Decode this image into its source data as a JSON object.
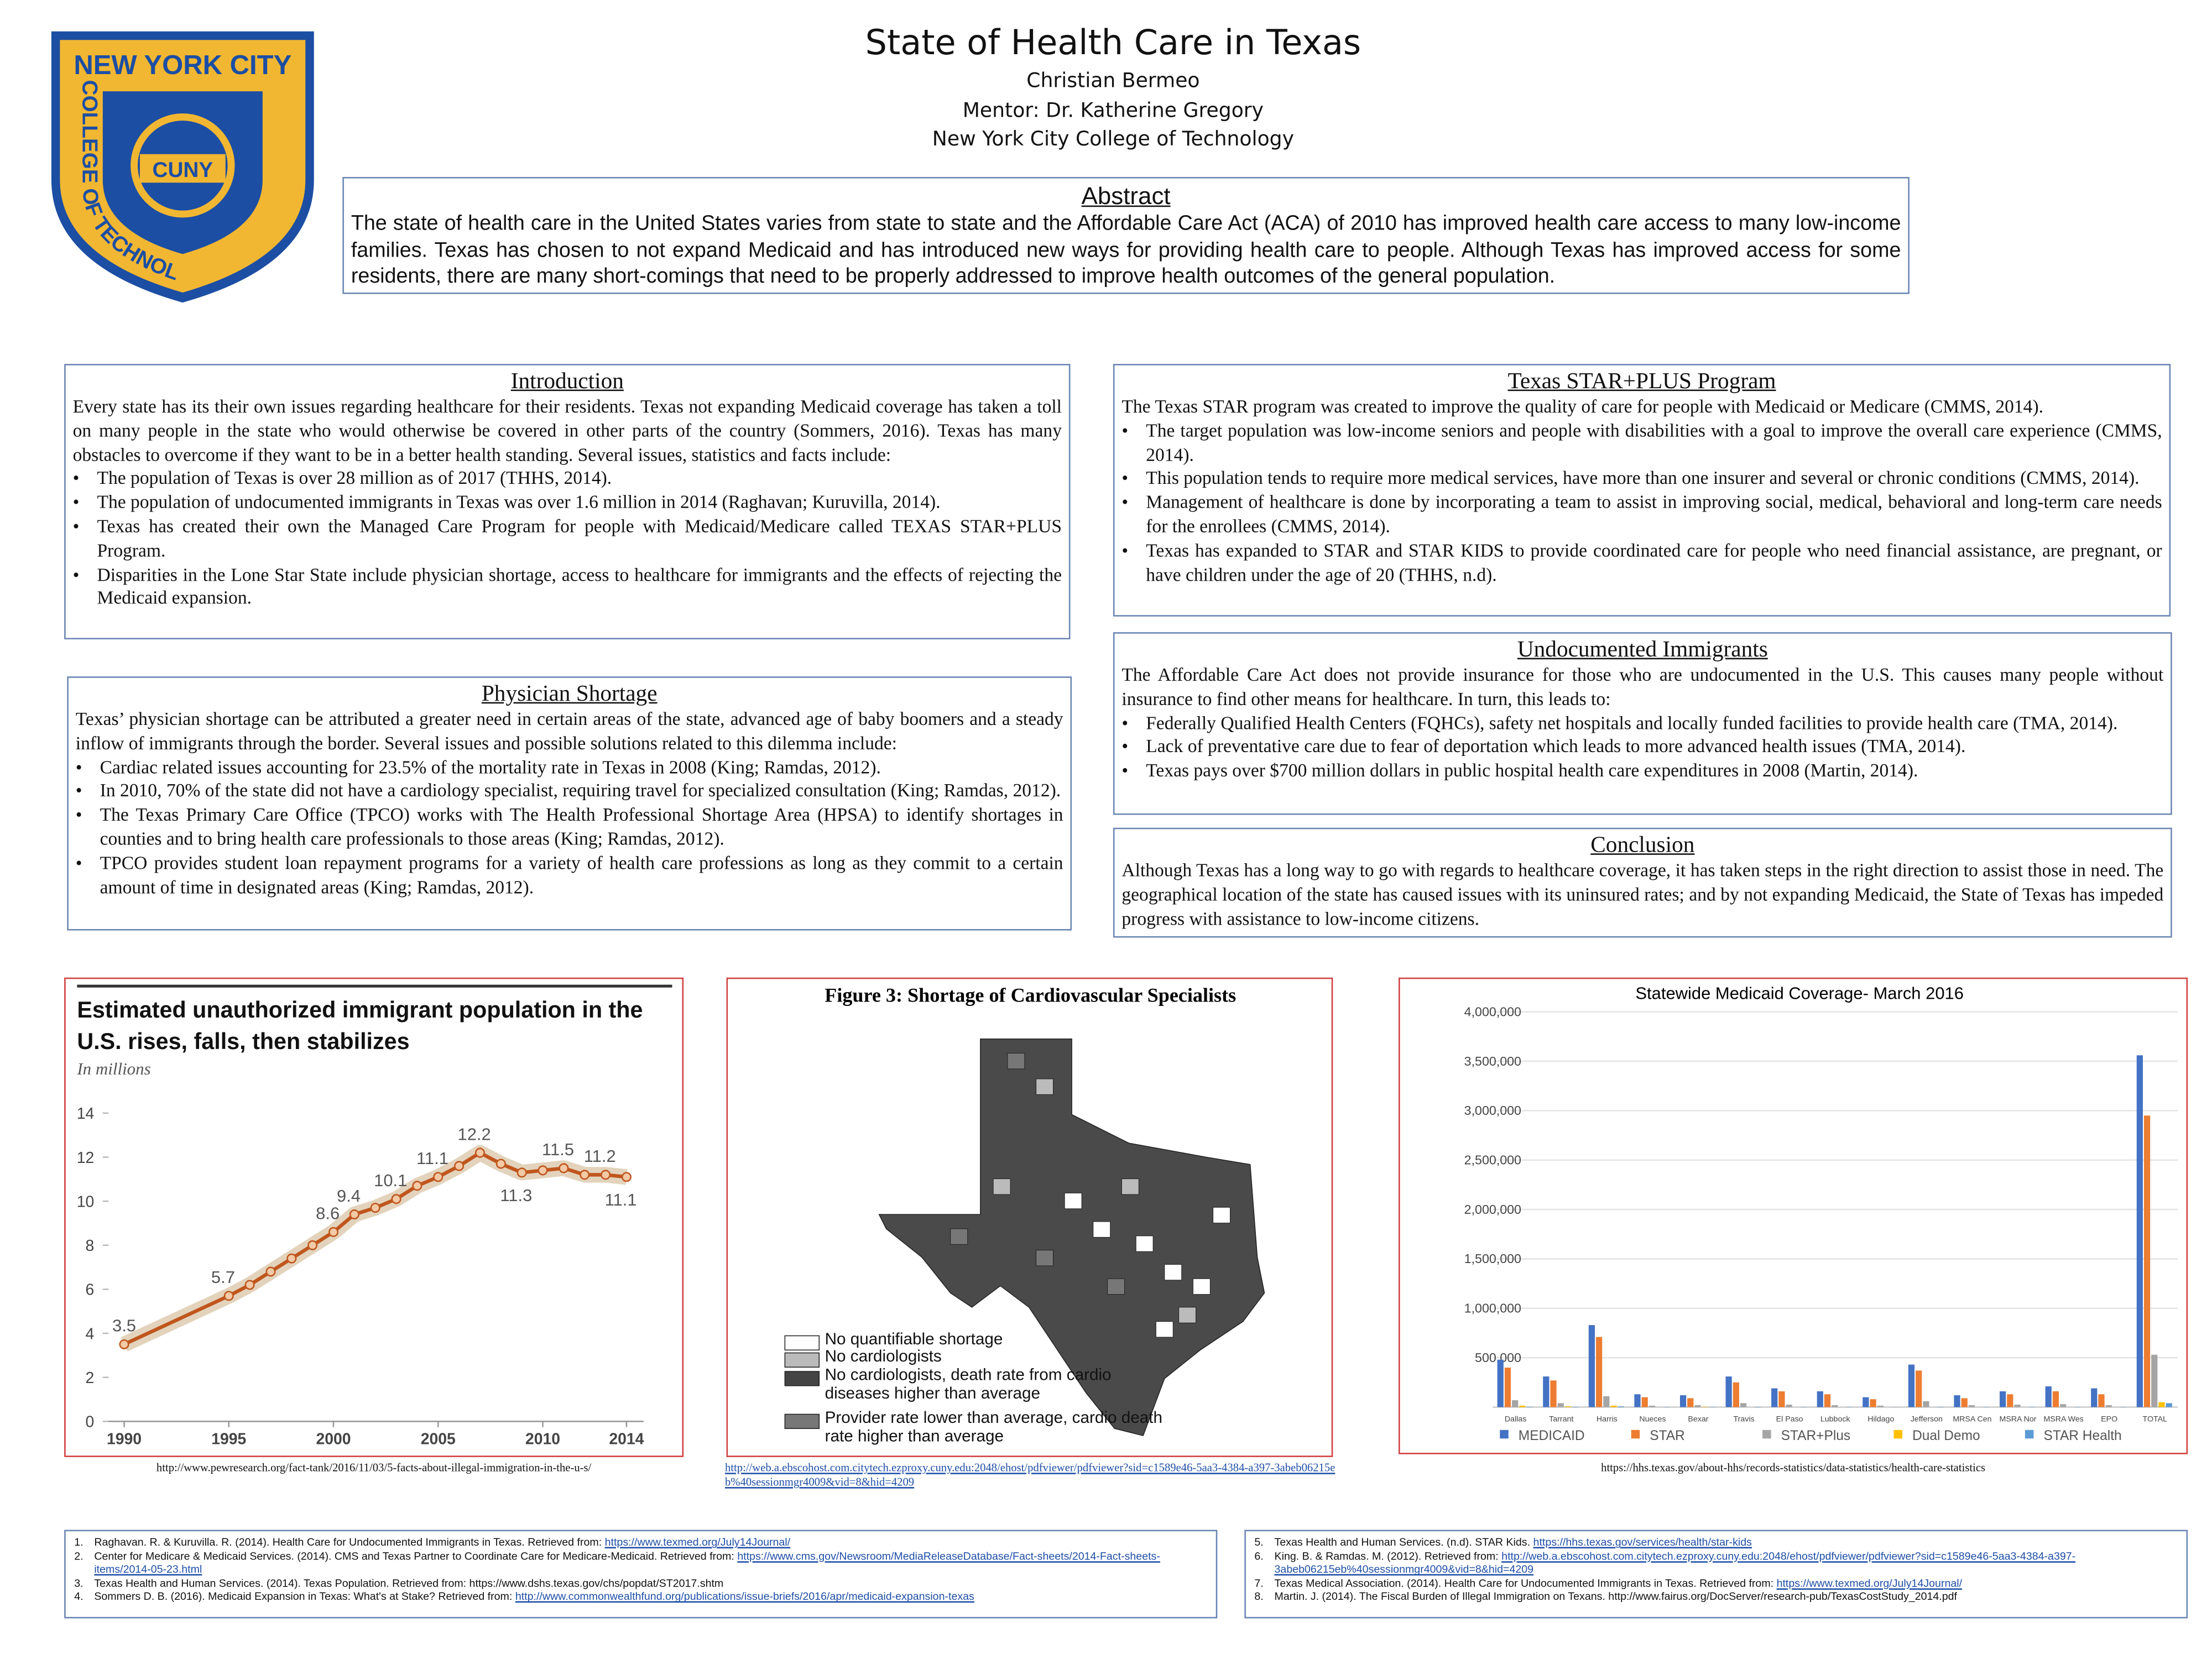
{
  "header": {
    "title": "State of Health Care in Texas",
    "author": "Christian Bermeo",
    "mentor": "Mentor: Dr. Katherine Gregory",
    "institution": "New York City College of Technology"
  },
  "logo": {
    "top": "NEW YORK CITY",
    "side": "COLLEGE OF TECHNOLOGY",
    "center": "CUNY"
  },
  "abstract": {
    "heading": "Abstract",
    "text": "The state of health care in the United States varies from state to state and the Affordable Care Act (ACA) of 2010 has improved health care access to many low-income families. Texas has chosen to not expand Medicaid and has introduced new ways for providing health care to people. Although Texas has improved access for some residents, there are many short-comings that need to be properly addressed to improve health outcomes of the general population."
  },
  "sections": [
    {
      "heading": "Introduction",
      "text": "Every state has its their own issues regarding healthcare for their residents. Texas not expanding Medicaid coverage has taken a toll on many people in the state who would otherwise be covered in other parts of the country (Sommers, 2016). Texas has many obstacles to overcome if they want to be in a better health standing. Several issues, statistics and facts include:",
      "bullets": [
        "The population of Texas is over 28 million as of 2017 (THHS, 2014).",
        "The population of undocumented immigrants in Texas was over 1.6 million in 2014 (Raghavan; Kuruvilla, 2014).",
        "Texas has created their own the Managed Care Program for people with Medicaid/Medicare called TEXAS STAR+PLUS Program.",
        "Disparities in the Lone Star State include physician shortage, access to healthcare for immigrants and the effects of rejecting the Medicaid expansion."
      ]
    },
    {
      "heading": "Physician Shortage",
      "text": "Texas’ physician shortage can be attributed a greater need in certain areas of the state, advanced age of baby boomers and a steady inflow of immigrants through the border. Several issues and possible solutions related to this dilemma include:",
      "bullets": [
        "Cardiac related issues accounting for 23.5% of the mortality rate in Texas in 2008 (King; Ramdas, 2012).",
        "In 2010, 70% of the state did not have a cardiology specialist, requiring travel for specialized consultation (King; Ramdas, 2012).",
        "The Texas Primary Care Office (TPCO) works with The Health Professional Shortage Area (HPSA) to identify shortages in counties and to bring health care professionals to those areas (King; Ramdas, 2012).",
        "TPCO provides student loan repayment programs for a variety of health care professions as long as they commit to a certain amount of time in designated areas (King; Ramdas, 2012)."
      ]
    },
    {
      "heading": "Texas STAR+PLUS Program",
      "text": "The Texas STAR program was created to improve the quality of care for people with Medicaid or Medicare (CMMS, 2014).",
      "bullets": [
        "The target population was low-income seniors and people with disabilities with a goal to improve the overall care experience (CMMS, 2014).",
        "This population tends to require more medical services, have more than one insurer and several or chronic conditions (CMMS, 2014).",
        "Management of healthcare is done by incorporating a team to assist in improving social, medical, behavioral and long-term care needs for the enrollees (CMMS, 2014).",
        "Texas has expanded to STAR and STAR KIDS to provide coordinated care for people who need financial assistance, are pregnant, or have children under the age of 20 (THHS, n.d)."
      ]
    },
    {
      "heading": "Undocumented Immigrants",
      "text": "The Affordable Care Act does not provide insurance for those who are undocumented in the U.S. This causes many people without insurance to find other means for healthcare. In turn, this leads to:",
      "bullets": [
        "Federally Qualified Health Centers (FQHCs), safety net hospitals and locally funded facilities to provide health care (TMA, 2014).",
        "Lack of preventative care due to fear of deportation which leads to more advanced health issues (TMA, 2014).",
        "Texas pays over $700 million dollars in public hospital health care expenditures in 2008 (Martin, 2014)."
      ]
    },
    {
      "heading": "Conclusion",
      "text": "Although Texas has a long way to go with regards to healthcare coverage, it has taken steps in the right direction to assist those in need. The geographical location of the state has caused issues with its uninsured rates; and by not expanding Medicaid, the State of Texas has impeded progress with assistance to low-income citizens."
    }
  ],
  "chart_data": [
    {
      "type": "line",
      "title": "Estimated unauthorized immigrant population in the U.S. rises, falls, then stabilizes",
      "subtitle": "In millions",
      "color": "#c0561d",
      "x": [
        1990,
        1995,
        1996,
        1997,
        1998,
        1999,
        2000,
        2001,
        2002,
        2003,
        2004,
        2005,
        2006,
        2007,
        2008,
        2009,
        2010,
        2011,
        2012,
        2013,
        2014
      ],
      "values": [
        3.5,
        5.7,
        6.2,
        6.8,
        7.4,
        8.0,
        8.6,
        9.4,
        9.7,
        10.1,
        10.7,
        11.1,
        11.6,
        12.2,
        11.7,
        11.3,
        11.4,
        11.5,
        11.2,
        11.2,
        11.1
      ],
      "value_labels": [
        "3.5",
        "5.7",
        null,
        null,
        null,
        null,
        "8.6",
        "9.4",
        null,
        "10.1",
        null,
        "11.1",
        null,
        "12.2",
        null,
        "11.3",
        null,
        "11.5",
        null,
        "11.2",
        "11.1"
      ],
      "xlim": [
        1990,
        2014
      ],
      "xticks": [
        1990,
        1995,
        2000,
        2005,
        2010,
        2014
      ],
      "ylim": [
        0,
        14
      ],
      "yticks": [
        0,
        2,
        4,
        6,
        8,
        10,
        12,
        14
      ]
    },
    {
      "type": "bar",
      "title": "Statewide Medicaid Coverage- March 2016",
      "legend": "bottom",
      "grid": true,
      "categories": [
        "Dallas",
        "Tarrant",
        "Harris",
        "Nueces",
        "Bexar",
        "Travis",
        "El Paso",
        "Lubbock",
        "Hildago",
        "Jefferson",
        "MRSA Cen",
        "MSRA Nor",
        "MSRA Wes",
        "EPO",
        "TOTAL"
      ],
      "series": [
        {
          "name": "MEDICAID",
          "color": "#4472c4",
          "values": [
            480000,
            310000,
            830000,
            130000,
            120000,
            310000,
            190000,
            160000,
            100000,
            430000,
            120000,
            160000,
            210000,
            190000,
            3560000
          ]
        },
        {
          "name": "STAR",
          "color": "#ed7d31",
          "values": [
            400000,
            270000,
            710000,
            100000,
            90000,
            250000,
            160000,
            130000,
            80000,
            370000,
            90000,
            130000,
            160000,
            130000,
            2950000
          ]
        },
        {
          "name": "STAR+Plus",
          "color": "#a5a5a5",
          "values": [
            70000,
            40000,
            110000,
            15000,
            20000,
            40000,
            25000,
            20000,
            15000,
            60000,
            20000,
            25000,
            30000,
            20000,
            530000
          ]
        },
        {
          "name": "Dual Demo",
          "color": "#ffc000",
          "values": [
            15000,
            8000,
            15000,
            0,
            4000,
            0,
            0,
            0,
            0,
            0,
            0,
            0,
            0,
            0,
            50000
          ]
        },
        {
          "name": "STAR Health",
          "color": "#5b9bd5",
          "values": [
            4000,
            3000,
            8000,
            2000,
            2000,
            3000,
            2000,
            2000,
            1000,
            3000,
            2000,
            2000,
            2000,
            2000,
            40000
          ]
        }
      ],
      "ylim": [
        0,
        4000000
      ],
      "yticks": [
        {
          "value": 500000,
          "label": "500,000"
        },
        {
          "value": 1000000,
          "label": "1,000,000"
        },
        {
          "value": 1500000,
          "label": "1,500,000"
        },
        {
          "value": 2000000,
          "label": "2,000,000"
        },
        {
          "value": 2500000,
          "label": "2,500,000"
        },
        {
          "value": 3000000,
          "label": "3,000,000"
        },
        {
          "value": 3500000,
          "label": "3,500,000"
        },
        {
          "value": 4000000,
          "label": "4,000,000"
        }
      ]
    }
  ],
  "map": {
    "title": "Figure 3: Shortage of Cardiovascular Specialists",
    "legend": [
      "No quantifiable shortage",
      "No cardiologists",
      "No cardiologists, death rate from cardio diseases higher than average",
      "Provider rate lower than average, cardio death rate higher than average"
    ]
  },
  "captions": [
    "http://www.pewresearch.org/fact-tank/2016/11/03/5-facts-about-illegal-immigration-in-the-u-s/",
    "http://web.a.ebscohost.com.citytech.ezproxy.cuny.edu:2048/ehost/pdfviewer/pdfviewer?sid=c1589e46-5aa3-4384-a397-3abeb06215eb%40sessionmgr4009&vid=8&hid=4209",
    "https://hhs.texas.gov/about-hhs/records-statistics/data-statistics/health-care-statistics"
  ],
  "references": [
    [
      {
        "n": "1.",
        "text": "Raghavan. R. & Kuruvilla. R. (2014). Health Care for Undocumented Immigrants in Texas. Retrieved from:",
        "link": "https://www.texmed.org/July14Journal/"
      },
      {
        "n": "2.",
        "text": "Center for Medicare & Medicaid Services. (2014). CMS and Texas Partner to Coordinate Care for Medicare-Medicaid. Retrieved from:",
        "link": "https://www.cms.gov/Newsroom/MediaReleaseDatabase/Fact-sheets/2014-Fact-sheets-items/2014-05-23.html"
      },
      {
        "n": "3.",
        "text": "Texas Health and Human Services. (2014). Texas Population. Retrieved from: https://www.dshs.texas.gov/chs/popdat/ST2017.shtm"
      },
      {
        "n": "4.",
        "text": "Sommers D. B. (2016). Medicaid Expansion in Texas: What's at Stake? Retrieved from:",
        "link": "http://www.commonwealthfund.org/publications/issue-briefs/2016/apr/medicaid-expansion-texas"
      }
    ],
    [
      {
        "n": "5.",
        "text": "Texas Health and Human Services. (n.d). STAR Kids.",
        "link": "https://hhs.texas.gov/services/health/star-kids"
      },
      {
        "n": "6.",
        "text": "King. B. & Ramdas. M. (2012). Retrieved from:",
        "link": "http://web.a.ebscohost.com.citytech.ezproxy.cuny.edu:2048/ehost/pdfviewer/pdfviewer?sid=c1589e46-5aa3-4384-a397-3abeb06215eb%40sessionmgr4009&vid=8&hid=4209"
      },
      {
        "n": "7.",
        "text": "Texas Medical Association. (2014). Health Care for Undocumented Immigrants in Texas. Retrieved from:",
        "link": "https://www.texmed.org/July14Journal/"
      },
      {
        "n": "8.",
        "text": "Martin. J. (2014). The Fiscal Burden of Illegal Immigration on Texans. http://www.fairus.org/DocServer/research-pub/TexasCostStudy_2014.pdf"
      }
    ]
  ]
}
